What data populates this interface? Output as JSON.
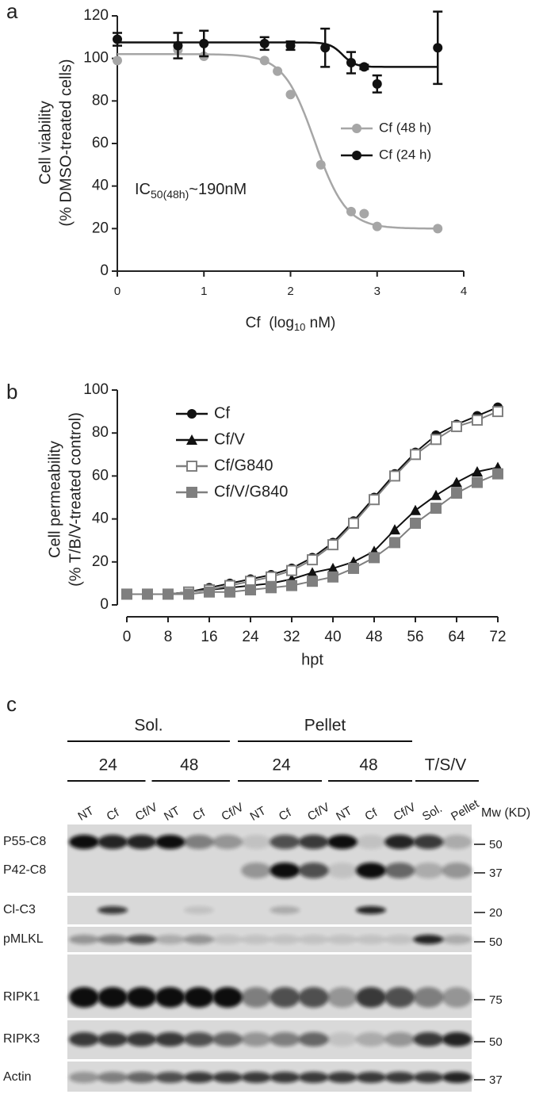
{
  "panel_labels": [
    "a",
    "b",
    "c"
  ],
  "chart_data": [
    {
      "type": "scatter",
      "ylabel": [
        "Cell viability",
        "(% DMSO-treated cells)"
      ],
      "xlabel": [
        "Cf  (log",
        "10",
        " nM)"
      ],
      "annotation": [
        "IC",
        "50(48h)",
        "~190nM"
      ],
      "xlim": [
        0,
        4
      ],
      "xticks": [
        0,
        1,
        2,
        3,
        4
      ],
      "ylim": [
        0,
        120
      ],
      "yticks": [
        0,
        20,
        40,
        60,
        80,
        100,
        120
      ],
      "legend": "right",
      "series": [
        {
          "name": "Cf (48 h)",
          "color": "#a6a6a6",
          "x": [
            0,
            0.7,
            1,
            1.7,
            1.85,
            2,
            2.35,
            2.7,
            2.85,
            3,
            3.7
          ],
          "values": [
            99,
            104,
            101,
            99,
            94,
            83,
            50,
            28,
            27,
            21,
            20
          ],
          "fit": {
            "top": 102,
            "bottom": 20,
            "log_ic50": 2.28,
            "hill": 2.4
          }
        },
        {
          "name": "Cf (24 h)",
          "color": "#111111",
          "x": [
            0,
            0.7,
            1,
            1.7,
            2,
            2.4,
            2.7,
            2.85,
            3,
            3.7
          ],
          "values": [
            109,
            106,
            107,
            107,
            106,
            105,
            98,
            96,
            88,
            105
          ],
          "errors": [
            3,
            6,
            6,
            3,
            2,
            9,
            5,
            1,
            4,
            17
          ],
          "fit": {
            "top": 107.5,
            "bottom": 96,
            "log_ic50": 2.6,
            "hill": 6
          }
        }
      ]
    },
    {
      "type": "line",
      "ylabel": [
        "Cell permeability",
        "(% T/B/V-treated control)"
      ],
      "xlabel": "hpt",
      "x": [
        0,
        4,
        8,
        12,
        16,
        20,
        24,
        28,
        32,
        36,
        40,
        44,
        48,
        52,
        56,
        60,
        64,
        68,
        72
      ],
      "xlim": [
        0,
        72
      ],
      "xticks": [
        0,
        8,
        16,
        24,
        32,
        40,
        48,
        56,
        64,
        72
      ],
      "ylim": [
        0,
        100
      ],
      "yticks": [
        0,
        20,
        40,
        60,
        80,
        100
      ],
      "legend": "upper left",
      "series": [
        {
          "name": "Cf",
          "color": "#111111",
          "marker": "circle",
          "values": [
            5,
            5,
            5,
            6,
            8,
            10,
            12,
            14,
            17,
            22,
            29,
            39,
            50,
            61,
            71,
            79,
            84,
            88,
            92
          ]
        },
        {
          "name": "Cf/V",
          "color": "#111111",
          "marker": "triangle",
          "values": [
            5,
            5,
            5,
            6,
            7,
            8,
            9,
            10,
            12,
            15,
            17,
            20,
            25,
            35,
            44,
            51,
            57,
            62,
            64
          ]
        },
        {
          "name": "Cf/G840",
          "color": "#808080",
          "marker": "open-square",
          "values": [
            5,
            5,
            5,
            6,
            7,
            9,
            11,
            13,
            16,
            21,
            28,
            38,
            49,
            60,
            70,
            77,
            83,
            86,
            90
          ]
        },
        {
          "name": "Cf/V/G840",
          "color": "#7f7f7f",
          "marker": "square",
          "values": [
            5,
            5,
            5,
            5,
            6,
            6,
            7,
            8,
            9,
            11,
            13,
            17,
            22,
            29,
            38,
            45,
            52,
            57,
            61
          ]
        }
      ]
    }
  ],
  "blot": {
    "groups": [
      {
        "label": "Sol.",
        "subgroups": [
          "24",
          "48"
        ]
      },
      {
        "label": "Pellet",
        "subgroups": [
          "24",
          "48"
        ]
      }
    ],
    "extra": "T/S/V",
    "lanes": [
      "NT",
      "Cf",
      "Cf/V",
      "NT",
      "Cf",
      "Cf/V",
      "NT",
      "Cf",
      "Cf/V",
      "NT",
      "Cf",
      "Cf/V",
      "Sol.",
      "Pellet"
    ],
    "mw_header": "Mw (KD)",
    "rows": [
      {
        "label": "P55-C8",
        "mw": "50"
      },
      {
        "label": "P42-C8",
        "mw": "37"
      },
      {
        "label": "Cl-C3",
        "mw": "20"
      },
      {
        "label": "pMLKL",
        "mw": "50"
      },
      {
        "label": "RIPK1",
        "mw": "75"
      },
      {
        "label": "RIPK3",
        "mw": "50"
      },
      {
        "label": "Actin",
        "mw": "37"
      }
    ]
  }
}
